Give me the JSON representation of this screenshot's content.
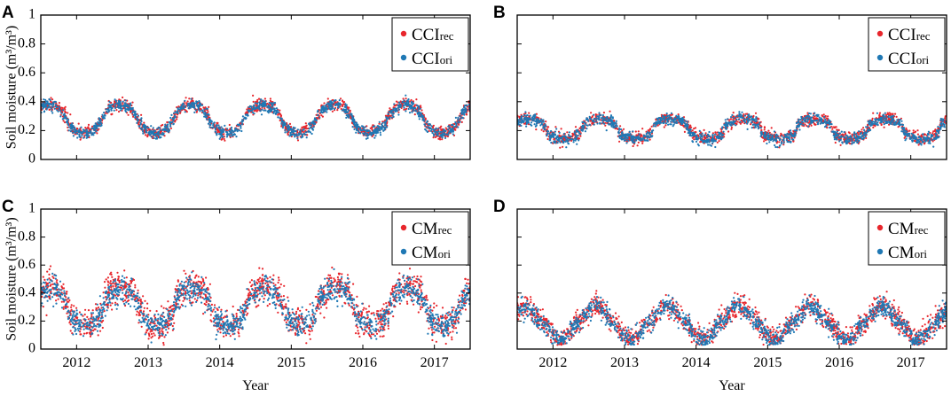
{
  "chart_data": [
    {
      "panel": "A",
      "type": "scatter",
      "xlabel": "",
      "ylabel": "Soil moisture (m³/m³)",
      "xlim": [
        2011.5,
        2017.5
      ],
      "ylim": [
        0,
        1
      ],
      "xticks": [
        2012,
        2013,
        2014,
        2015,
        2016,
        2017
      ],
      "yticks": [
        0,
        0.2,
        0.4,
        0.6,
        0.8,
        1
      ],
      "show_xtick_labels": false,
      "show_ytick_labels": true,
      "legend": {
        "position": "top-right",
        "entries": [
          {
            "main": "CCI",
            "sub": "rec"
          },
          {
            "main": "CCI",
            "sub": "ori"
          }
        ]
      },
      "series": [
        {
          "name": "CCI_rec",
          "color": "#e8262c",
          "count": 1400,
          "seed": 11,
          "model": {
            "mean": 0.285,
            "amplitude": 0.1,
            "phase_peak": 0.6,
            "sharpness": 0.7,
            "noise": 0.022
          }
        },
        {
          "name": "CCI_ori",
          "color": "#1f78b4",
          "count": 1400,
          "seed": 12,
          "model": {
            "mean": 0.28,
            "amplitude": 0.1,
            "phase_peak": 0.6,
            "sharpness": 0.7,
            "noise": 0.02
          }
        }
      ]
    },
    {
      "panel": "B",
      "type": "scatter",
      "xlabel": "",
      "ylabel": "",
      "xlim": [
        2011.5,
        2017.5
      ],
      "ylim": [
        0,
        1
      ],
      "xticks": [
        2012,
        2013,
        2014,
        2015,
        2016,
        2017
      ],
      "yticks": [
        0,
        0.2,
        0.4,
        0.6,
        0.8,
        1
      ],
      "show_xtick_labels": false,
      "show_ytick_labels": false,
      "legend": {
        "position": "top-right",
        "entries": [
          {
            "main": "CCI",
            "sub": "rec"
          },
          {
            "main": "CCI",
            "sub": "ori"
          }
        ]
      },
      "series": [
        {
          "name": "CCI_rec",
          "color": "#e8262c",
          "count": 1400,
          "seed": 21,
          "model": {
            "mean": 0.215,
            "amplitude": 0.07,
            "phase_peak": 0.65,
            "sharpness": 0.5,
            "noise": 0.022
          }
        },
        {
          "name": "CCI_ori",
          "color": "#1f78b4",
          "count": 1400,
          "seed": 22,
          "model": {
            "mean": 0.21,
            "amplitude": 0.07,
            "phase_peak": 0.65,
            "sharpness": 0.5,
            "noise": 0.02
          }
        }
      ]
    },
    {
      "panel": "C",
      "type": "scatter",
      "xlabel": "Year",
      "ylabel": "Soil moisture (m³/m³)",
      "xlim": [
        2011.5,
        2017.5
      ],
      "ylim": [
        0,
        1
      ],
      "xticks": [
        2012,
        2013,
        2014,
        2015,
        2016,
        2017
      ],
      "yticks": [
        0,
        0.2,
        0.4,
        0.6,
        0.8,
        1
      ],
      "show_xtick_labels": true,
      "show_ytick_labels": true,
      "legend": {
        "position": "top-right",
        "entries": [
          {
            "main": "CM",
            "sub": "rec"
          },
          {
            "main": "CM",
            "sub": "ori"
          }
        ]
      },
      "series": [
        {
          "name": "CM_rec",
          "color": "#e8262c",
          "count": 1500,
          "seed": 31,
          "model": {
            "mean": 0.31,
            "amplitude": 0.14,
            "phase_peak": 0.62,
            "sharpness": 0.6,
            "noise": 0.06
          }
        },
        {
          "name": "CM_ori",
          "color": "#1f78b4",
          "count": 1500,
          "seed": 32,
          "model": {
            "mean": 0.3,
            "amplitude": 0.13,
            "phase_peak": 0.62,
            "sharpness": 0.6,
            "noise": 0.045
          }
        }
      ]
    },
    {
      "panel": "D",
      "type": "scatter",
      "xlabel": "Year",
      "ylabel": "",
      "xlim": [
        2011.5,
        2017.5
      ],
      "ylim": [
        0,
        1
      ],
      "xticks": [
        2012,
        2013,
        2014,
        2015,
        2016,
        2017
      ],
      "yticks": [
        0,
        0.2,
        0.4,
        0.6,
        0.8,
        1
      ],
      "show_xtick_labels": true,
      "show_ytick_labels": false,
      "legend": {
        "position": "top-right",
        "entries": [
          {
            "main": "CM",
            "sub": "rec"
          },
          {
            "main": "CM",
            "sub": "ori"
          }
        ]
      },
      "series": [
        {
          "name": "CM_rec",
          "color": "#e8262c",
          "count": 1500,
          "seed": 41,
          "model": {
            "mean": 0.19,
            "amplitude": 0.12,
            "phase_peak": 0.6,
            "sharpness": 1.4,
            "noise": 0.04
          }
        },
        {
          "name": "CM_ori",
          "color": "#1f78b4",
          "count": 1500,
          "seed": 42,
          "model": {
            "mean": 0.185,
            "amplitude": 0.12,
            "phase_peak": 0.6,
            "sharpness": 1.4,
            "noise": 0.035
          }
        }
      ]
    }
  ]
}
